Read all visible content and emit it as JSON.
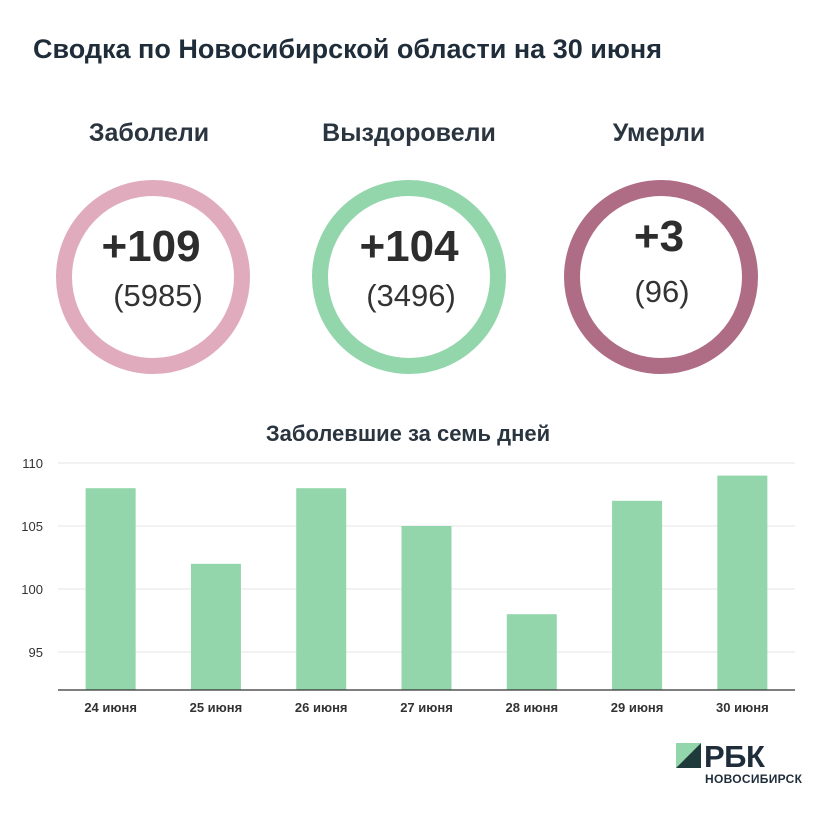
{
  "title": "Сводка по Новосибирской области на 30 июня",
  "stats": [
    {
      "label": "Заболели",
      "delta": "+109",
      "total": "(5985)",
      "color": "#e0abbd"
    },
    {
      "label": "Выздоровели",
      "delta": "+104",
      "total": "(3496)",
      "color": "#93d6ac"
    },
    {
      "label": "Умерли",
      "delta": "+3",
      "total": "(96)",
      "color": "#ae6c85"
    }
  ],
  "chart_data": {
    "type": "bar",
    "title": "Заболевшие за семь дней",
    "categories": [
      "24 июня",
      "25 июня",
      "26 июня",
      "27 июня",
      "28 июня",
      "29 июня",
      "30 июня"
    ],
    "values": [
      108,
      102,
      108,
      105,
      98,
      107,
      109
    ],
    "ylim": [
      92,
      110
    ],
    "yticks": [
      95,
      100,
      105,
      110
    ],
    "xlabel": "",
    "ylabel": "",
    "grid": true,
    "bar_color": "#93d6ac"
  },
  "brand": {
    "name": "РБК",
    "city": "НОВОСИБИРСК",
    "colors": {
      "dark": "#1f3a3a",
      "light": "#93d6ac"
    }
  }
}
